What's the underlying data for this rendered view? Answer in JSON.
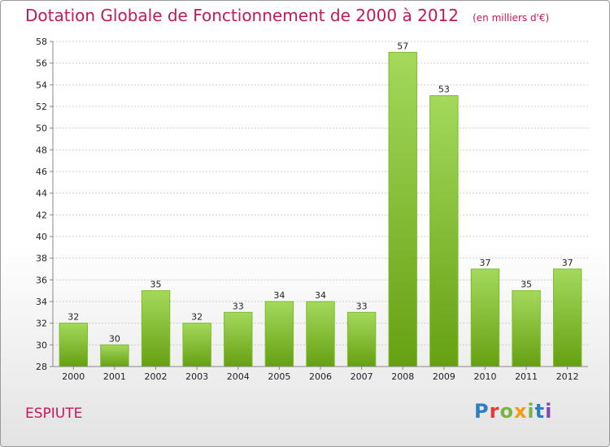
{
  "header": {
    "title": "Dotation Globale de Fonctionnement de 2000 à 2012",
    "unit": "(en milliers d'€)"
  },
  "footer": {
    "commune": "ESPIUTE",
    "brand": "Proxiti",
    "brand_colors": [
      "#2e7fc2",
      "#e53935",
      "#7cb342",
      "#f39c12",
      "#7cb342",
      "#2e7fc2",
      "#8e44ad"
    ]
  },
  "colors": {
    "title": "#c2185b",
    "bar_light": "#9fd455",
    "bar_dark": "#6aa514",
    "grid": "#cccccc",
    "axis": "#888888"
  },
  "chart_data": {
    "type": "bar",
    "title": "Dotation Globale de Fonctionnement de 2000 à 2012",
    "subtitle": "(en milliers d'€)",
    "categories": [
      "2000",
      "2001",
      "2002",
      "2003",
      "2004",
      "2005",
      "2006",
      "2007",
      "2008",
      "2009",
      "2010",
      "2011",
      "2012"
    ],
    "values": [
      32,
      30,
      35,
      32,
      33,
      34,
      34,
      33,
      57,
      53,
      37,
      35,
      37
    ],
    "ylim": [
      28,
      58
    ],
    "yticks": [
      28,
      30,
      32,
      34,
      36,
      38,
      40,
      42,
      44,
      46,
      48,
      50,
      52,
      54,
      56,
      58
    ],
    "grid": true,
    "legend": "none",
    "data_labels": true
  }
}
